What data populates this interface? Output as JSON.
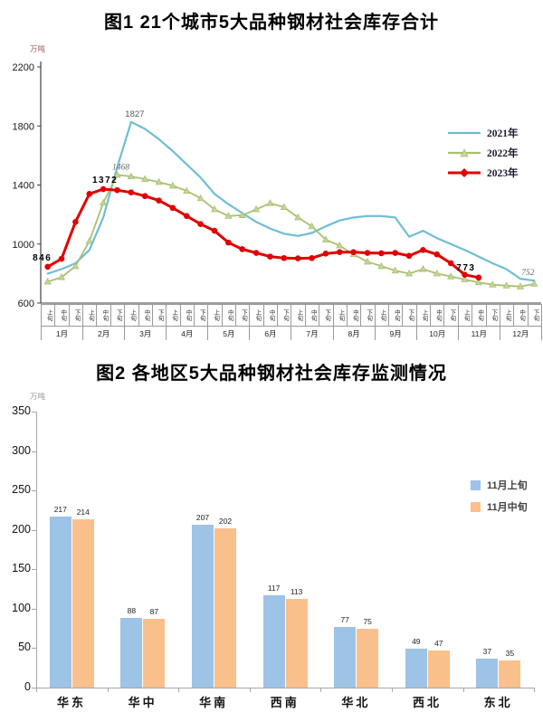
{
  "chart_data": [
    {
      "type": "line",
      "title": "图1 21个城市5大品种钢材社会库存合计",
      "unit": "万吨",
      "ylim": [
        600,
        2200
      ],
      "y_ticks": [
        600,
        1000,
        1400,
        1800,
        2200
      ],
      "months": [
        "1月",
        "2月",
        "3月",
        "4月",
        "5月",
        "6月",
        "7月",
        "8月",
        "9月",
        "10月",
        "11月",
        "12月"
      ],
      "periods": [
        "上旬",
        "中旬",
        "下旬"
      ],
      "x_structure": "36 positions = 12 months x 3 periods",
      "legend_position": "right",
      "grid": false,
      "series": [
        {
          "name": "2021年",
          "color": "#6FBDD6",
          "marker": "none",
          "values": [
            800,
            830,
            870,
            960,
            1180,
            1520,
            1827,
            1780,
            1710,
            1630,
            1540,
            1450,
            1340,
            1270,
            1210,
            1150,
            1105,
            1070,
            1055,
            1075,
            1120,
            1160,
            1180,
            1190,
            1190,
            1180,
            1050,
            1090,
            1040,
            1000,
            960,
            915,
            870,
            830,
            765,
            752
          ]
        },
        {
          "name": "2022年",
          "color": "#A8C070",
          "marker": "triangle",
          "values": [
            745,
            775,
            850,
            1020,
            1280,
            1468,
            1458,
            1440,
            1420,
            1395,
            1360,
            1310,
            1235,
            1190,
            1195,
            1235,
            1277,
            1250,
            1180,
            1120,
            1030,
            990,
            930,
            880,
            850,
            820,
            800,
            830,
            800,
            780,
            760,
            740,
            725,
            718,
            712,
            730
          ]
        },
        {
          "name": "2023年",
          "color": "#E00000",
          "marker": "circle",
          "values": [
            846,
            900,
            1150,
            1340,
            1372,
            1365,
            1350,
            1325,
            1295,
            1245,
            1190,
            1135,
            1090,
            1010,
            965,
            940,
            915,
            905,
            903,
            905,
            935,
            945,
            945,
            940,
            938,
            940,
            920,
            960,
            930,
            870,
            792,
            773
          ]
        }
      ],
      "annotations": [
        {
          "text": "846",
          "series": "2023年",
          "xi": 0,
          "style": "bold"
        },
        {
          "text": "1372",
          "series": "2023年",
          "xi": 4,
          "style": "bold"
        },
        {
          "text": "1468",
          "series": "2022年",
          "xi": 5,
          "style": "italic"
        },
        {
          "text": "1827",
          "series": "2021年",
          "xi": 6,
          "style": "plain"
        },
        {
          "text": "773",
          "series": "2023年",
          "xi": 31,
          "style": "bold"
        },
        {
          "text": "752",
          "series": "2021年",
          "xi": 35,
          "style": "italic"
        }
      ]
    },
    {
      "type": "bar",
      "title": "图2 各地区5大品种钢材社会库存监测情况",
      "unit": "万吨",
      "categories": [
        "华东",
        "华中",
        "华南",
        "西南",
        "华北",
        "西北",
        "东北"
      ],
      "series": [
        {
          "name": "11月上旬",
          "color": "#9DC3E6",
          "values": [
            217,
            88,
            207,
            117,
            77,
            49,
            37
          ]
        },
        {
          "name": "11月中旬",
          "color": "#FAC08C",
          "values": [
            214,
            87,
            202,
            113,
            75,
            47,
            35
          ]
        }
      ],
      "ylim": [
        0,
        350
      ],
      "y_ticks": [
        0,
        50,
        100,
        150,
        200,
        250,
        300,
        350
      ],
      "legend_position": "right",
      "grid": false
    }
  ]
}
